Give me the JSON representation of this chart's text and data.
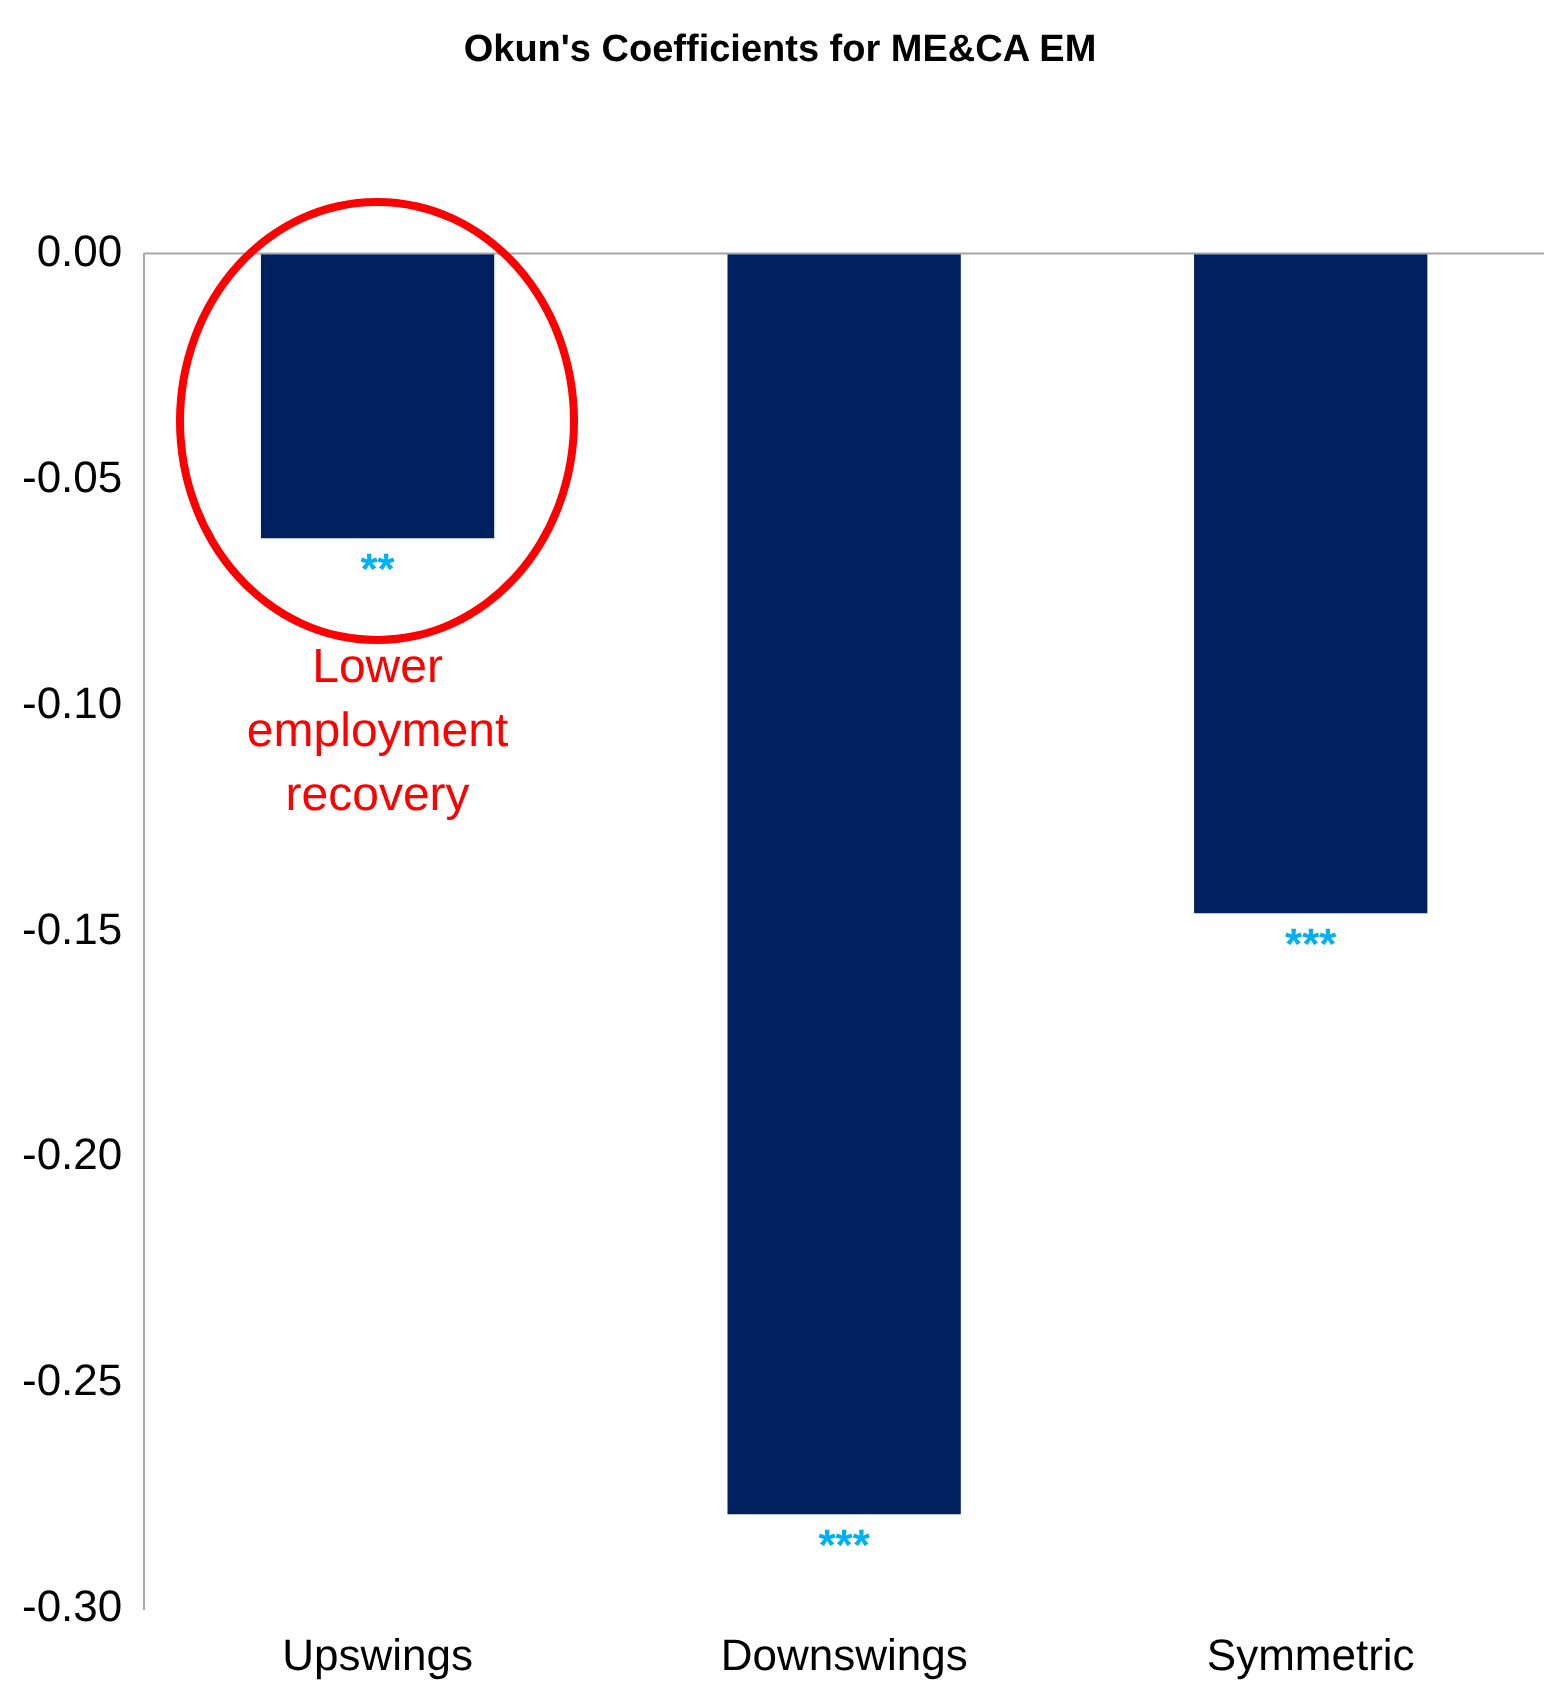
{
  "chart_data": {
    "type": "bar",
    "title": "Okun's Coefficients for ME&CA EM",
    "categories": [
      "Upswings",
      "Downswings",
      "Symmetric"
    ],
    "values": [
      -0.063,
      -0.279,
      -0.146
    ],
    "color": "#002060",
    "ylim": [
      -0.3,
      0
    ],
    "yticks": [
      {
        "value": 0,
        "label": "0.00"
      },
      {
        "value": -0.05,
        "label": "-0.05"
      },
      {
        "value": -0.1,
        "label": "-0.10"
      },
      {
        "value": -0.15,
        "label": "-0.15"
      },
      {
        "value": -0.2,
        "label": "-0.20"
      },
      {
        "value": -0.25,
        "label": "-0.25"
      },
      {
        "value": -0.3,
        "label": "-0.30"
      }
    ],
    "grid": false,
    "legend": false,
    "annotations": [
      "**",
      "***",
      "***",
      "Lower employment recovery"
    ]
  }
}
